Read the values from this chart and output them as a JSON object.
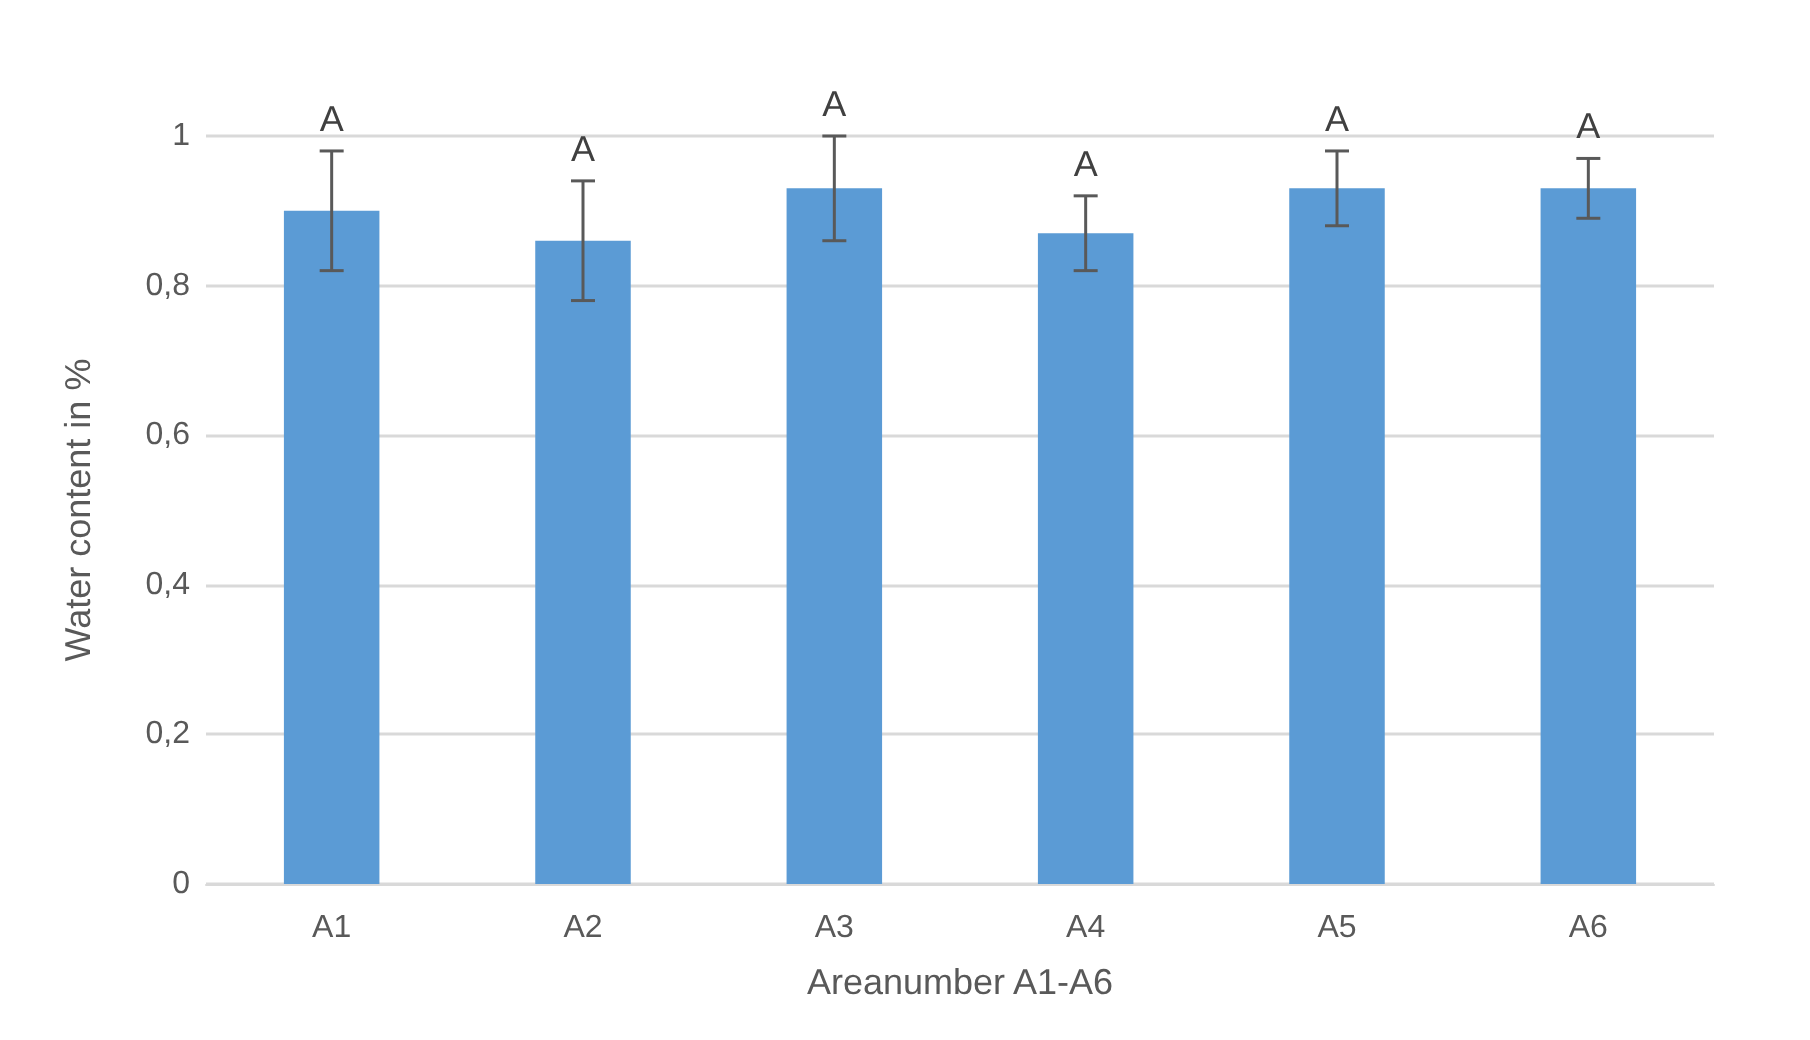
{
  "chart_data": {
    "type": "bar",
    "xlabel": "Areanumber A1-A6",
    "ylabel": "Water content in %",
    "categories": [
      "A1",
      "A2",
      "A3",
      "A4",
      "A5",
      "A6"
    ],
    "values": [
      0.9,
      0.86,
      0.93,
      0.87,
      0.93,
      0.93
    ],
    "errors": [
      0.08,
      0.08,
      0.07,
      0.05,
      0.05,
      0.04
    ],
    "color": "#5b9bd5",
    "ylim": [
      0,
      1
    ],
    "yticks": [
      0,
      {
        "value": 0.2,
        "label": "0,2"
      },
      {
        "value": 0.4,
        "label": "0,4"
      },
      {
        "value": 0.6,
        "label": "0,6"
      },
      {
        "value": 0.8,
        "label": "0,8"
      },
      1
    ],
    "grid": "y",
    "annotations": [
      "A",
      "A",
      "A",
      "A",
      "A",
      "A"
    ]
  }
}
